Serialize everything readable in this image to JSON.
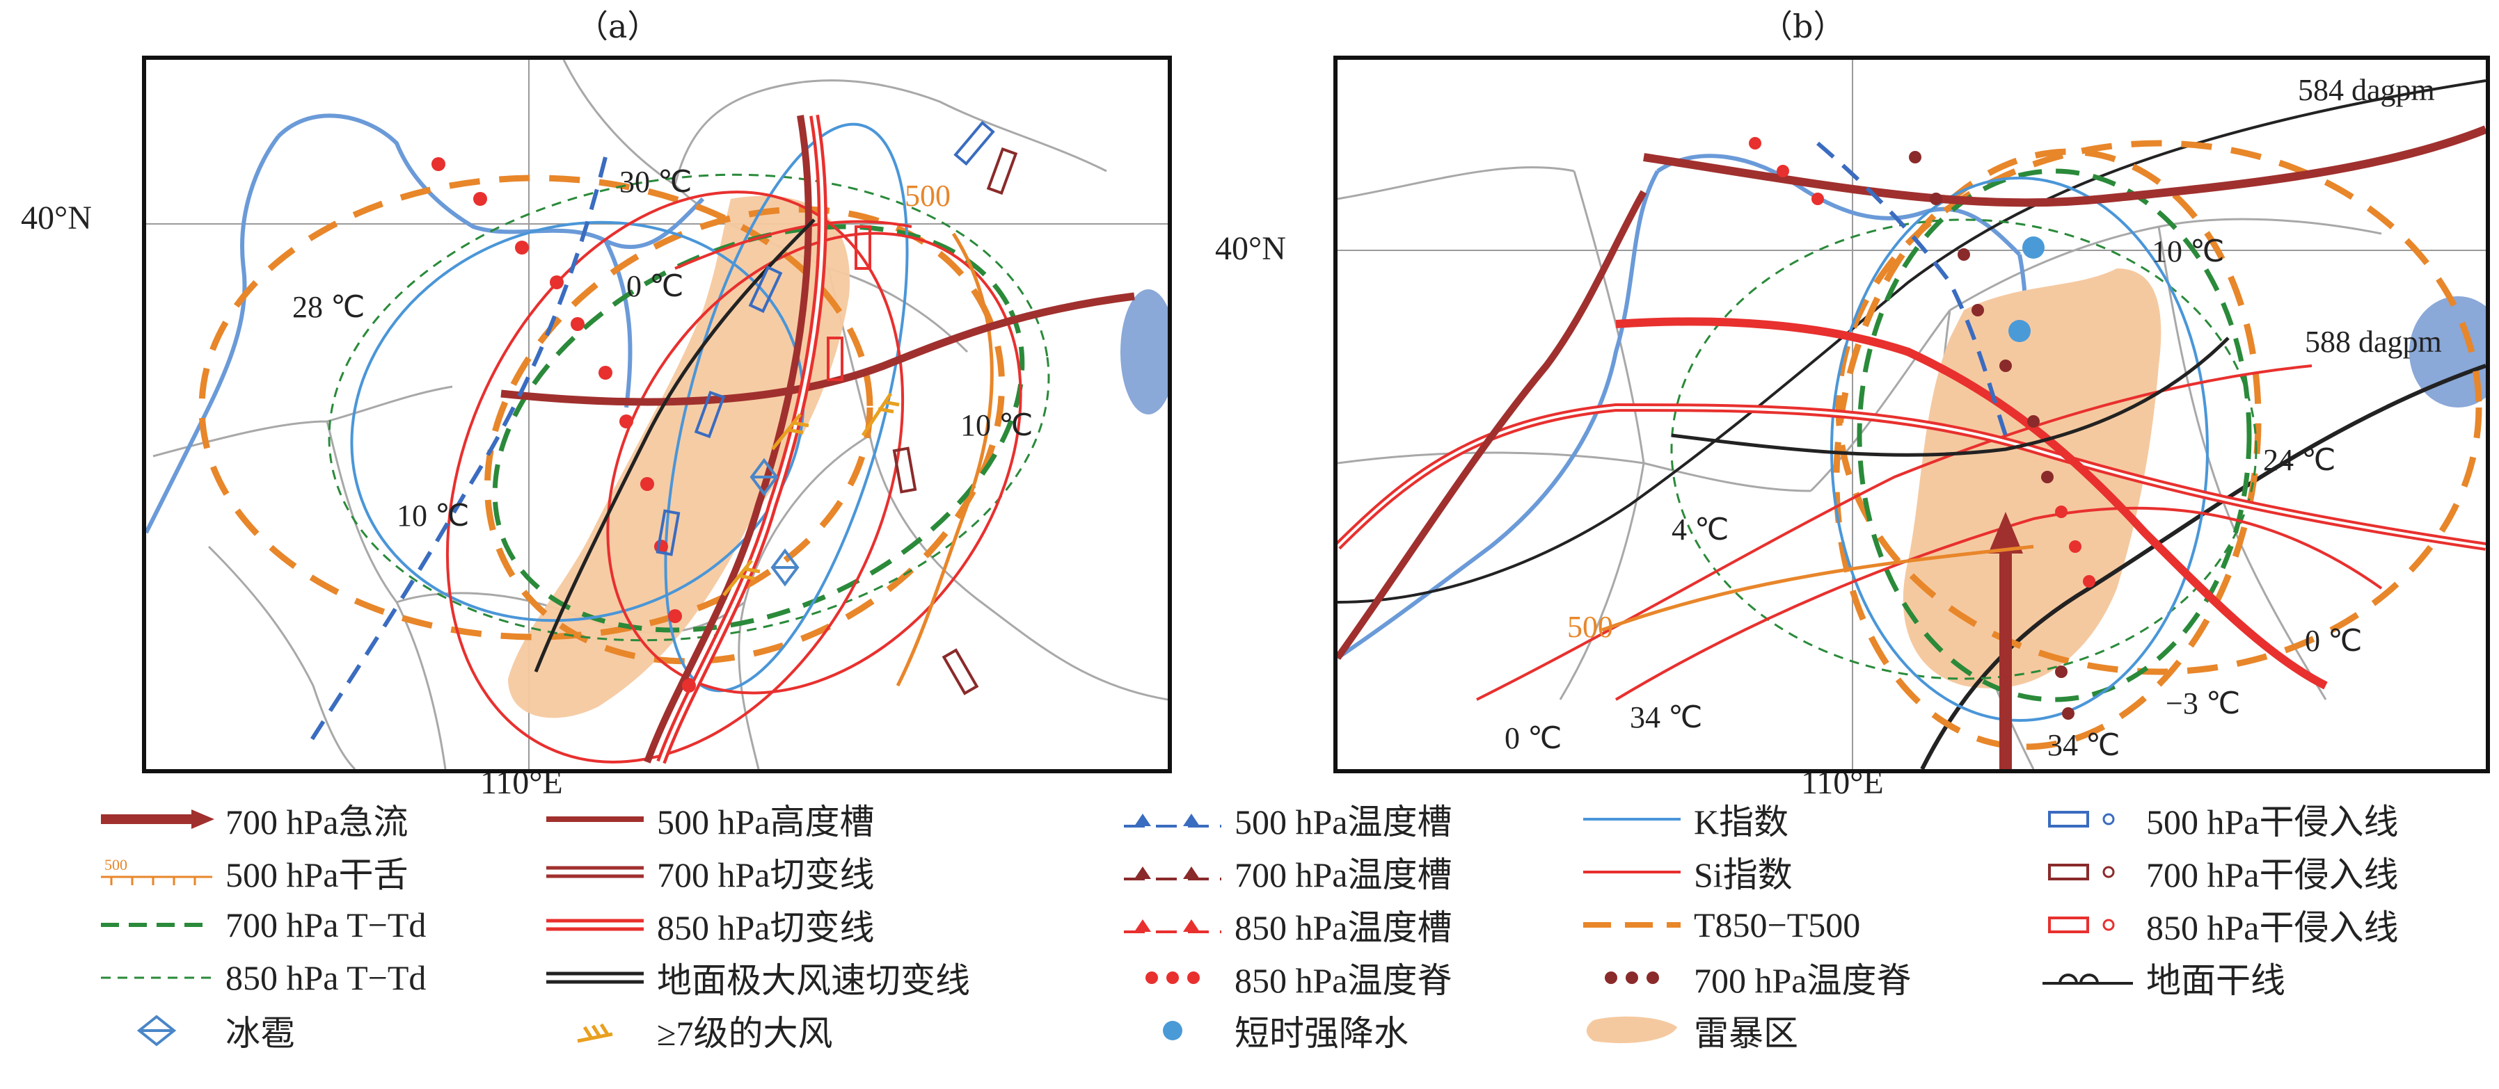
{
  "panels": [
    {
      "label": "（a）",
      "lat_label": "40°N",
      "lon_label": "110°E",
      "texts": {
        "t28": "28 ℃",
        "t30": "30 ℃",
        "t0": "0 ℃",
        "t10l": "10 ℃",
        "t10r": "10 ℃",
        "t500": "500"
      }
    },
    {
      "label": "（b）",
      "lat_label": "40°N",
      "lon_label": "110°E",
      "texts": {
        "c584": "584 dagpm",
        "c588": "588 dagpm",
        "t10": "10 ℃",
        "t24": "24 ℃",
        "t4": "4 ℃",
        "t500": "500",
        "t0a": "0 ℃",
        "t34a": "34 ℃",
        "t34b": "34 ℃",
        "tm3": "−3 ℃",
        "t0b": "0 ℃"
      }
    }
  ],
  "legend": [
    {
      "id": "jet700",
      "label": "700 hPa急流",
      "color": "#a0302e"
    },
    {
      "id": "dry500",
      "label": "500 hPa干舌",
      "color": "#e8862a",
      "symbol_text": "500"
    },
    {
      "id": "ttd700",
      "label": "700 hPa T−T",
      "sub": "d",
      "color": "#2a8a3a"
    },
    {
      "id": "ttd850",
      "label": "850 hPa T−T",
      "sub": "d",
      "color": "#2a8a3a"
    },
    {
      "id": "hail",
      "label": "冰雹",
      "color": "#4a86c8"
    },
    {
      "id": "trough500",
      "label": "500 hPa高度槽",
      "color": "#a0302e"
    },
    {
      "id": "shear700",
      "label": "700 hPa切变线",
      "color": "#a0302e"
    },
    {
      "id": "shear850",
      "label": "850 hPa切变线",
      "color": "#e8302e"
    },
    {
      "id": "shearsfc",
      "label": "地面极大风速切变线",
      "color": "#222222"
    },
    {
      "id": "gale",
      "label": "≥7级的大风",
      "color": "#e8a020"
    },
    {
      "id": "ttrough500",
      "label": "500 hPa温度槽",
      "color": "#3a6cc0"
    },
    {
      "id": "ttrough700",
      "label": "700 hPa温度槽",
      "color": "#8a2a2a"
    },
    {
      "id": "ttrough850",
      "label": "850 hPa温度槽",
      "color": "#e8302e"
    },
    {
      "id": "tridge850",
      "label": "850 hPa温度脊",
      "color": "#e8302e"
    },
    {
      "id": "rain",
      "label": "短时强降水",
      "color": "#4a9ad8"
    },
    {
      "id": "kindex",
      "label": "K指数",
      "color": "#4a96d8"
    },
    {
      "id": "siindex",
      "label": "Si指数",
      "color": "#e8302e"
    },
    {
      "id": "t850t500",
      "label": "T850−T500",
      "color": "#e8862a"
    },
    {
      "id": "tridge700",
      "label": "700 hPa温度脊",
      "color": "#8a2a2a"
    },
    {
      "id": "storm",
      "label": "雷暴区",
      "color": "#f5c9a0"
    },
    {
      "id": "dry500in",
      "label": "500 hPa干侵入线",
      "color": "#3a6cc0"
    },
    {
      "id": "dry700in",
      "label": "700 hPa干侵入线",
      "color": "#8a2a2a"
    },
    {
      "id": "dry850in",
      "label": "850 hPa干侵入线",
      "color": "#e8302e"
    },
    {
      "id": "dryline",
      "label": "地面干线",
      "color": "#222222"
    }
  ],
  "legend_text": {
    "jet700": "700 hPa急流",
    "dry500": "500 hPa干舌",
    "ttd700": "700 hPa T−Td",
    "ttd850": "850 hPa T−Td",
    "hail": "冰雹",
    "trough500": "500 hPa高度槽",
    "shear700": "700 hPa切变线",
    "shear850": "850 hPa切变线",
    "shearsfc": "地面极大风速切变线",
    "gale": "≥7级的大风",
    "ttrough500": "500 hPa温度槽",
    "ttrough700": "700 hPa温度槽",
    "ttrough850": "850 hPa温度槽",
    "tridge850": "850 hPa温度脊",
    "rain": "短时强降水",
    "kindex": "K指数",
    "siindex": "Si指数",
    "t850t500": "T850−T500",
    "tridge700": "700 hPa温度脊",
    "storm": "雷暴区",
    "dry500in": "500 hPa干侵入线",
    "dry700in": "700 hPa干侵入线",
    "dry850in": "850 hPa干侵入线",
    "dryline": "地面干线"
  }
}
